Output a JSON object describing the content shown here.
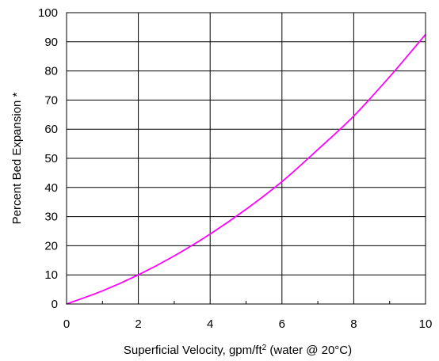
{
  "chart_data": {
    "type": "line",
    "xlabel": "Superficial Velocity, gpm/ft",
    "xlabel_superscript": "2",
    "xlabel_suffix": " (water @ 20°C)",
    "ylabel": "Percent Bed Expansion *",
    "xlim": [
      0,
      10
    ],
    "ylim": [
      0,
      100
    ],
    "x_ticks": [
      "0",
      "2",
      "4",
      "6",
      "8",
      "10"
    ],
    "y_ticks": [
      "0",
      "10",
      "20",
      "30",
      "40",
      "50",
      "60",
      "70",
      "80",
      "90",
      "100"
    ],
    "grid": true,
    "series": [
      {
        "color": "#ff00ff",
        "x": [
          0,
          1,
          2,
          3,
          4,
          5,
          6,
          7,
          8,
          9,
          10
        ],
        "y": [
          0,
          4.5,
          10,
          16.5,
          24,
          32.5,
          42,
          53,
          64.5,
          78,
          92.5
        ]
      }
    ]
  }
}
